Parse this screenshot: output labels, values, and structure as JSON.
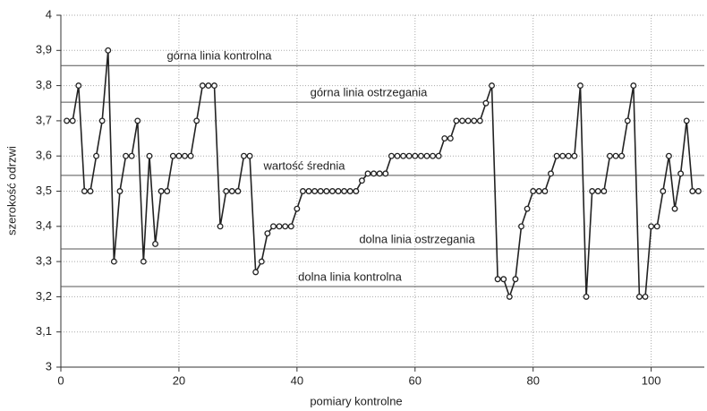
{
  "chart_data": {
    "type": "line",
    "xlabel": "pomiary kontrolne",
    "ylabel": "szerokość odrzwi",
    "x": [
      1,
      2,
      3,
      4,
      5,
      6,
      7,
      8,
      9,
      10,
      11,
      12,
      13,
      14,
      15,
      16,
      17,
      18,
      19,
      20,
      21,
      22,
      23,
      24,
      25,
      26,
      27,
      28,
      29,
      30,
      31,
      32,
      33,
      34,
      35,
      36,
      37,
      38,
      39,
      40,
      41,
      42,
      43,
      44,
      45,
      46,
      47,
      48,
      49,
      50,
      51,
      52,
      53,
      54,
      55,
      56,
      57,
      58,
      59,
      60,
      61,
      62,
      63,
      64,
      65,
      66,
      67,
      68,
      69,
      70,
      71,
      72,
      73,
      74,
      75,
      76,
      77,
      78,
      79,
      80,
      81,
      82,
      83,
      84,
      85,
      86,
      87,
      88,
      89,
      90,
      91,
      92,
      93,
      94,
      95,
      96,
      97,
      98,
      99,
      100,
      101,
      102,
      103,
      104,
      105,
      106,
      107,
      108
    ],
    "series": [
      {
        "name": "szerokość odrzwi",
        "color": "#222222",
        "values": [
          3.7,
          3.7,
          3.8,
          3.5,
          3.5,
          3.6,
          3.7,
          3.9,
          3.3,
          3.5,
          3.6,
          3.6,
          3.7,
          3.3,
          3.6,
          3.35,
          3.5,
          3.5,
          3.6,
          3.6,
          3.6,
          3.6,
          3.7,
          3.8,
          3.8,
          3.8,
          3.4,
          3.5,
          3.5,
          3.5,
          3.6,
          3.6,
          3.27,
          3.3,
          3.38,
          3.4,
          3.4,
          3.4,
          3.4,
          3.45,
          3.5,
          3.5,
          3.5,
          3.5,
          3.5,
          3.5,
          3.5,
          3.5,
          3.5,
          3.5,
          3.53,
          3.55,
          3.55,
          3.55,
          3.55,
          3.6,
          3.6,
          3.6,
          3.6,
          3.6,
          3.6,
          3.6,
          3.6,
          3.6,
          3.65,
          3.65,
          3.7,
          3.7,
          3.7,
          3.7,
          3.7,
          3.75,
          3.8,
          3.25,
          3.25,
          3.2,
          3.25,
          3.4,
          3.45,
          3.5,
          3.5,
          3.5,
          3.55,
          3.6,
          3.6,
          3.6,
          3.6,
          3.8,
          3.2,
          3.5,
          3.5,
          3.5,
          3.6,
          3.6,
          3.6,
          3.7,
          3.8,
          3.2,
          3.2,
          3.4,
          3.4,
          3.5,
          3.6,
          3.45,
          3.55,
          3.7,
          3.5,
          3.5
        ]
      }
    ],
    "reference_lines": [
      {
        "label": "górna linia kontrolna",
        "value": 3.857
      },
      {
        "label": "górna linia ostrzegania",
        "value": 3.753
      },
      {
        "label": "wartość średnia",
        "value": 3.545
      },
      {
        "label": "dolna linia ostrzegania",
        "value": 3.336
      },
      {
        "label": "dolna linia kontrolna",
        "value": 3.229
      }
    ],
    "xlim": [
      0,
      109
    ],
    "xticks": [
      0,
      20,
      40,
      60,
      80,
      100
    ],
    "ylim": [
      3,
      4
    ],
    "yticks": [
      3,
      {
        "value": 3.1,
        "label": "3,1"
      },
      {
        "value": 3.2,
        "label": "3,2"
      },
      {
        "value": 3.3,
        "label": "3,3"
      },
      {
        "value": 3.4,
        "label": "3,4"
      },
      {
        "value": 3.5,
        "label": "3,5"
      },
      {
        "value": 3.6,
        "label": "3,6"
      },
      {
        "value": 3.7,
        "label": "3,7"
      },
      {
        "value": 3.8,
        "label": "3,8"
      },
      {
        "value": 3.9,
        "label": "3,9"
      },
      4
    ],
    "grid": true
  }
}
